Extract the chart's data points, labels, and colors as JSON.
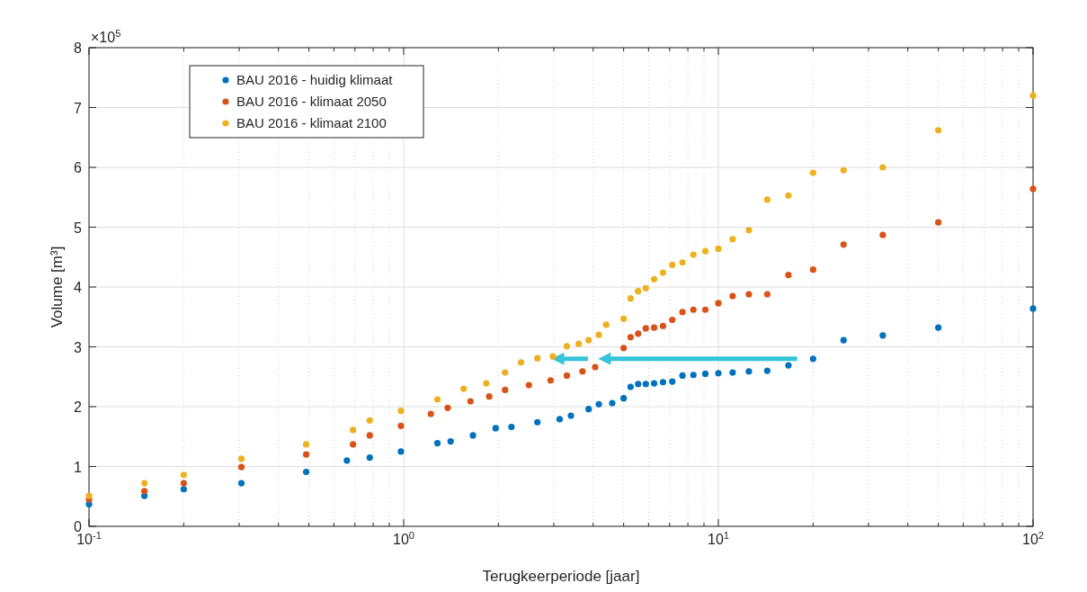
{
  "chart_data": {
    "type": "scatter",
    "xlabel": "Terugkeerperiode [jaar]",
    "ylabel": "Volume [m³]",
    "annotations": [
      "×10$^{5}$"
    ],
    "log": "x",
    "grid": true,
    "legend": "top left",
    "marker": "circle",
    "xlim": [
      0.1,
      100
    ],
    "xticks": [
      {
        "value": 0.1,
        "label": "10$^{-1}$"
      },
      {
        "value": 1,
        "label": "10$^{0}$"
      },
      {
        "value": 10,
        "label": "10$^{1}$"
      },
      {
        "value": 100,
        "label": "10$^{2}$"
      }
    ],
    "ylim": [
      0,
      8
    ],
    "yticks": [
      0,
      1,
      2,
      3,
      4,
      5,
      6,
      7,
      8
    ],
    "series": [
      {
        "name": "BAU 2016 - huidig klimaat",
        "color": "#0072bd",
        "x": [
          0.1,
          0.15,
          0.2,
          0.305,
          0.49,
          0.66,
          0.78,
          0.98,
          1.28,
          1.41,
          1.66,
          1.96,
          2.2,
          2.66,
          3.13,
          3.4,
          3.87,
          4.17,
          4.6,
          5,
          5.26,
          5.56,
          5.88,
          6.25,
          6.67,
          7.14,
          7.69,
          8.33,
          9.09,
          10,
          11.1,
          12.5,
          14.3,
          16.7,
          20,
          25,
          33.3,
          50,
          100
        ],
        "values": [
          0.37,
          0.51,
          0.62,
          0.72,
          0.91,
          1.1,
          1.15,
          1.25,
          1.39,
          1.42,
          1.52,
          1.64,
          1.66,
          1.74,
          1.79,
          1.85,
          1.96,
          2.04,
          2.06,
          2.14,
          2.33,
          2.38,
          2.38,
          2.39,
          2.41,
          2.42,
          2.52,
          2.53,
          2.55,
          2.56,
          2.57,
          2.59,
          2.6,
          2.69,
          2.8,
          3.11,
          3.19,
          3.32,
          3.64
        ]
      },
      {
        "name": "BAU 2016 - klimaat 2050",
        "color": "#d95319",
        "x": [
          0.1,
          0.15,
          0.2,
          0.305,
          0.49,
          0.69,
          0.78,
          0.98,
          1.22,
          1.38,
          1.63,
          1.87,
          2.1,
          2.5,
          2.93,
          3.3,
          3.7,
          4.06,
          5,
          5.26,
          5.56,
          5.88,
          6.25,
          6.67,
          7.14,
          7.69,
          8.33,
          9.09,
          10,
          11.1,
          12.5,
          14.3,
          16.7,
          20,
          25,
          33.3,
          50,
          100
        ],
        "values": [
          0.45,
          0.59,
          0.72,
          0.99,
          1.2,
          1.37,
          1.52,
          1.68,
          1.88,
          1.98,
          2.09,
          2.17,
          2.28,
          2.36,
          2.44,
          2.52,
          2.59,
          2.66,
          2.98,
          3.16,
          3.22,
          3.31,
          3.32,
          3.35,
          3.45,
          3.58,
          3.62,
          3.62,
          3.73,
          3.85,
          3.88,
          3.88,
          4.2,
          4.29,
          4.71,
          4.87,
          5.08,
          5.64
        ]
      },
      {
        "name": "BAU 2016 - klimaat 2100",
        "color": "#edb120",
        "x": [
          0.1,
          0.15,
          0.2,
          0.305,
          0.49,
          0.69,
          0.78,
          0.98,
          1.28,
          1.55,
          1.83,
          2.1,
          2.36,
          2.66,
          2.98,
          3.3,
          3.6,
          3.87,
          4.17,
          4.4,
          5,
          5.26,
          5.56,
          5.88,
          6.25,
          6.67,
          7.14,
          7.69,
          8.33,
          9.09,
          10,
          11.1,
          12.5,
          14.3,
          16.7,
          20,
          25,
          33.3,
          50,
          100
        ],
        "values": [
          0.51,
          0.72,
          0.86,
          1.13,
          1.37,
          1.61,
          1.77,
          1.93,
          2.12,
          2.3,
          2.39,
          2.57,
          2.74,
          2.81,
          2.84,
          3.01,
          3.05,
          3.11,
          3.2,
          3.37,
          3.47,
          3.81,
          3.93,
          3.98,
          4.13,
          4.24,
          4.37,
          4.41,
          4.54,
          4.6,
          4.64,
          4.8,
          4.95,
          5.46,
          5.53,
          5.91,
          5.95,
          6.0,
          6.62,
          7.2
        ]
      }
    ]
  }
}
